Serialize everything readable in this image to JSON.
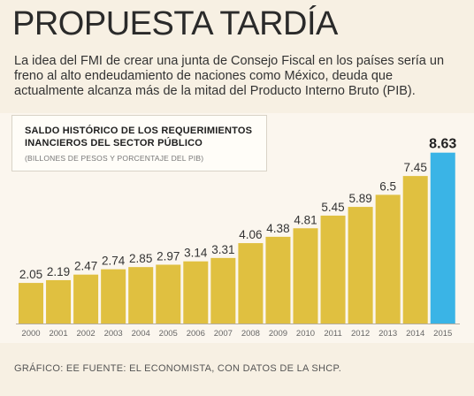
{
  "header": {
    "title": "PROPUESTA TARDÍA",
    "intro": "La idea del FMI de crear una junta de Consejo Fiscal en los países sería un freno al alto endeudamiento de naciones como México, deuda que actualmente alcanza más de la mitad del Producto Interno Bruto (PIB)."
  },
  "chart_label": {
    "title": "SALDO HISTÓRICO DE LOS REQUERIMIENTOS INANCIEROS DEL SECTOR PÚBLICO",
    "subtitle": "(BILLONES DE PESOS Y PORCENTAJE DEL PIB)"
  },
  "colors": {
    "bar": "#e0c040",
    "highlight": "#3ab4e6",
    "background": "#f7f0e3",
    "axis": "#b5ada0"
  },
  "chart_data": {
    "type": "bar",
    "title": "SALDO HISTÓRICO DE LOS REQUERIMIENTOS INANCIEROS DEL SECTOR PÚBLICO",
    "subtitle": "(BILLONES DE PESOS Y PORCENTAJE DEL PIB)",
    "categories": [
      "2000",
      "2001",
      "2002",
      "2003",
      "2004",
      "2005",
      "2006",
      "2007",
      "2008",
      "2009",
      "2010",
      "2011",
      "2012",
      "2013",
      "2014",
      "2015"
    ],
    "values": [
      2.05,
      2.19,
      2.47,
      2.74,
      2.85,
      2.97,
      3.14,
      3.31,
      4.06,
      4.38,
      4.81,
      5.45,
      5.89,
      6.5,
      7.45,
      8.63
    ],
    "value_labels": [
      "2.05",
      "2.19",
      "2.47",
      "2.74",
      "2.85",
      "2.97",
      "3.14",
      "3.31",
      "4.06",
      "4.38",
      "4.81",
      "5.45",
      "5.89",
      "6.5",
      "7.45",
      "8.63"
    ],
    "highlight_category": "2015",
    "ylim": [
      0,
      9
    ],
    "grid": false,
    "xlabel": "",
    "ylabel": ""
  },
  "footer": {
    "credit": "GRÁFICO: EE  FUENTE: EL ECONOMISTA, CON DATOS DE LA SHCP."
  }
}
